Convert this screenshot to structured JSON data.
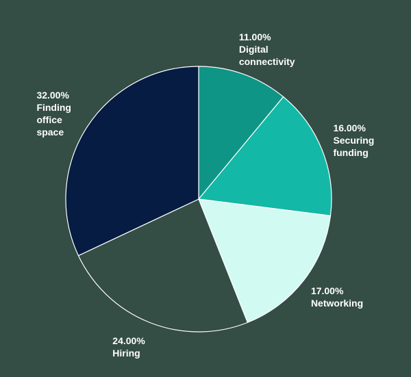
{
  "chart_data": {
    "type": "pie",
    "categories": [
      "Digital connectivity",
      "Securing funding",
      "Networking",
      "Hiring",
      "Finding office space"
    ],
    "values": [
      11,
      16,
      17,
      24,
      32
    ],
    "value_labels": [
      "11.00%",
      "16.00%",
      "17.00%",
      "24.00%",
      "32.00%"
    ],
    "colors": [
      "#0f9585",
      "#14b8a6",
      "#d1faf2",
      "#344d45",
      "#061c42"
    ]
  }
}
